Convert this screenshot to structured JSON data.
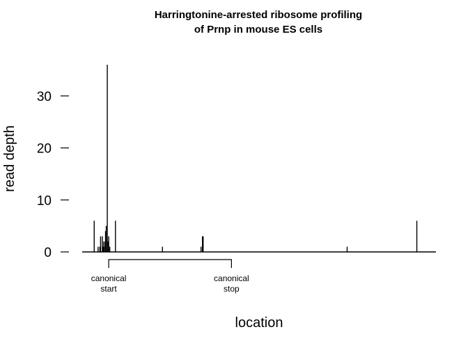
{
  "chart_data": {
    "type": "bar",
    "title_lines": [
      "Harringtonine-arrested ribosome profiling",
      "of Prnp in mouse ES cells"
    ],
    "xlabel": "location",
    "ylabel": "read depth",
    "xlim": [
      0,
      1000
    ],
    "ylim": [
      0,
      36
    ],
    "yticks": [
      {
        "value": 0,
        "label": "0"
      },
      {
        "value": 10,
        "label": "10"
      },
      {
        "value": 20,
        "label": "20"
      },
      {
        "value": 30,
        "label": "30"
      }
    ],
    "x": [
      34,
      45,
      50,
      52,
      57,
      59,
      61,
      62,
      65,
      66,
      68,
      71,
      73,
      75,
      78,
      94,
      227,
      336,
      340,
      342,
      749,
      946
    ],
    "values": [
      6,
      1,
      1,
      3,
      3,
      1,
      2,
      1,
      2,
      4,
      5,
      36,
      2,
      3,
      1,
      6,
      1,
      1,
      3,
      3,
      1,
      6
    ],
    "annotations": {
      "start": {
        "x": 75,
        "line1": "canonical",
        "line2": "start"
      },
      "stop": {
        "x": 422,
        "line1": "canonical",
        "line2": "stop"
      }
    }
  }
}
